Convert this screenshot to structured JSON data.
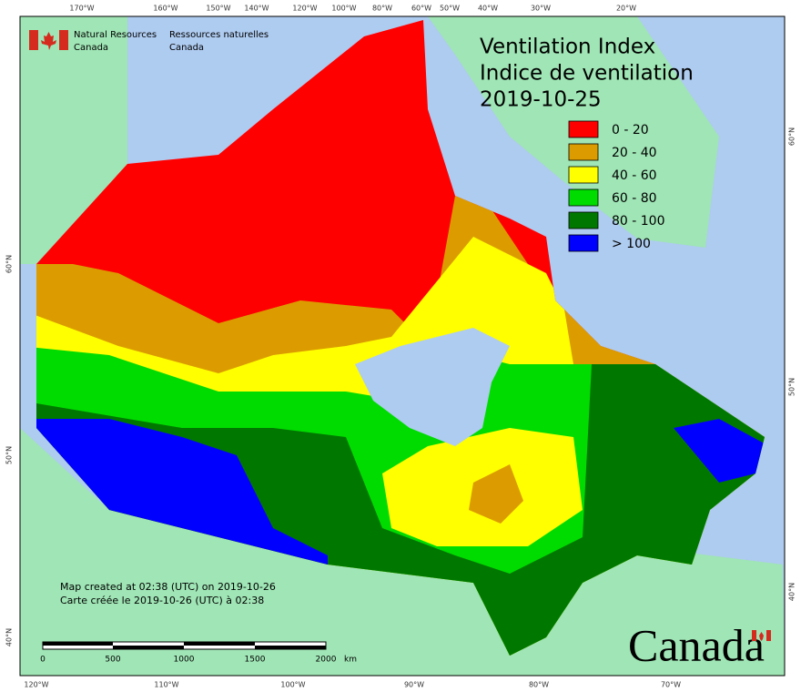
{
  "agency": {
    "en_line1": "Natural Resources",
    "en_line2": "Canada",
    "fr_line1": "Ressources naturelles",
    "fr_line2": "Canada"
  },
  "title": [
    "Ventilation Index",
    "Indice de ventilation",
    "2019-10-25"
  ],
  "legend": [
    {
      "label": "0 - 20",
      "color": "#ff0000"
    },
    {
      "label": "20 - 40",
      "color": "#dc9c00"
    },
    {
      "label": "40 - 60",
      "color": "#ffff00"
    },
    {
      "label": "60 - 80",
      "color": "#00dc00"
    },
    {
      "label": "80 - 100",
      "color": "#007800"
    },
    {
      "label": "> 100",
      "color": "#0000ff"
    }
  ],
  "notes": [
    "Map created at 02:38 (UTC) on 2019-10-26",
    "Carte créée le 2019-10-26 (UTC) à 02:38"
  ],
  "scale_bar": {
    "labels": [
      "0",
      "500",
      "1000",
      "1500",
      "2000"
    ],
    "unit": "km"
  },
  "graticule": {
    "top": [
      "170°W",
      "160°W",
      "150°W",
      "140°W",
      "120°W",
      "100°W",
      "80°W",
      "60°W",
      "50°W",
      "40°W",
      "30°W",
      "20°W"
    ],
    "bottom": [
      "120°W",
      "110°W",
      "100°W",
      "90°W",
      "80°W",
      "70°W"
    ],
    "left": [
      "60°N",
      "50°N",
      "40°N"
    ],
    "right": [
      "60°N",
      "50°N",
      "40°N"
    ]
  },
  "wordmark": "Canada"
}
